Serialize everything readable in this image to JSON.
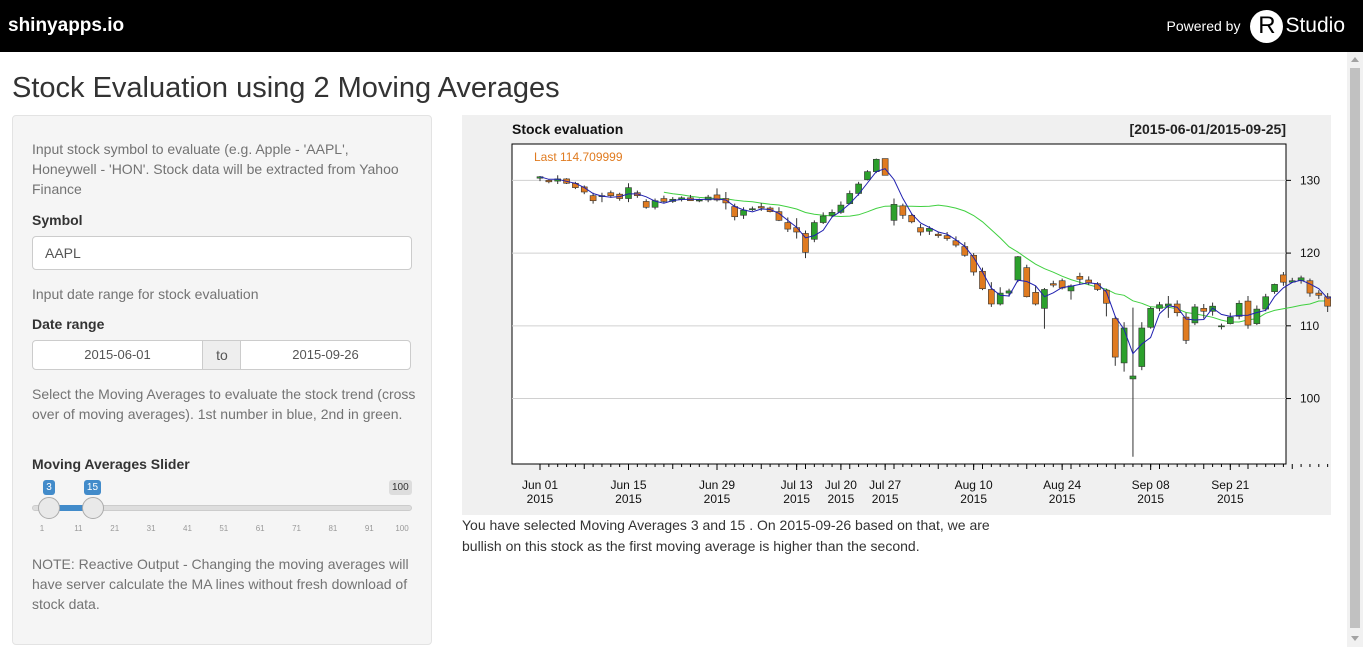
{
  "header": {
    "brand": "shinyapps.io",
    "powered_by": "Powered by",
    "logo_r": "R",
    "logo_studio": "Studio"
  },
  "page": {
    "title": "Stock Evaluation using 2 Moving Averages"
  },
  "sidebar": {
    "intro": "Input stock symbol to evaluate (e.g. Apple - 'AAPL', Honeywell - 'HON'. Stock data will be extracted from Yahoo Finance",
    "symbol_label": "Symbol",
    "symbol_value": "AAPL",
    "date_help": "Input date range for stock evaluation",
    "date_label": "Date range",
    "date_start": "2015-06-01",
    "date_sep": "to",
    "date_end": "2015-09-26",
    "ma_help": "Select the Moving Averages to evaluate the stock trend (cross over of moving averages). 1st number in blue, 2nd in green.",
    "slider_label": "Moving Averages Slider",
    "slider": {
      "min": 1,
      "max": 100,
      "low": 3,
      "high": 15,
      "low_label": "3",
      "high_label": "15",
      "max_label": "100",
      "ticks": [
        "1",
        "11",
        "21",
        "31",
        "41",
        "51",
        "61",
        "71",
        "81",
        "91",
        "100"
      ]
    },
    "note": "NOTE: Reactive Output - Changing the moving averages will have server calculate the MA lines without fresh download of stock data."
  },
  "result_text": "You have selected Moving Averages 3 and 15 . On 2015-09-26 based on that, we are bullish on this stock as the first moving average is higher than the second.",
  "chart_data": {
    "type": "candlestick",
    "title": "Stock evaluation",
    "range_label": "[2015-06-01/2015-09-25]",
    "last_label": "Last 114.709999",
    "ylim": [
      91,
      135
    ],
    "yticks": [
      100,
      110,
      120,
      130
    ],
    "xticks": [
      {
        "idx": 0,
        "l1": "Jun 01",
        "l2": "2015"
      },
      {
        "idx": 10,
        "l1": "Jun 15",
        "l2": "2015"
      },
      {
        "idx": 20,
        "l1": "Jun 29",
        "l2": "2015"
      },
      {
        "idx": 29,
        "l1": "Jul 13",
        "l2": "2015"
      },
      {
        "idx": 34,
        "l1": "Jul 20",
        "l2": "2015"
      },
      {
        "idx": 39,
        "l1": "Jul 27",
        "l2": "2015"
      },
      {
        "idx": 49,
        "l1": "Aug 10",
        "l2": "2015"
      },
      {
        "idx": 59,
        "l1": "Aug 24",
        "l2": "2015"
      },
      {
        "idx": 69,
        "l1": "Sep 08",
        "l2": "2015"
      },
      {
        "idx": 78,
        "l1": "Sep 21",
        "l2": "2015"
      }
    ],
    "colors": {
      "up": "#2ca02c",
      "down": "#e07b20",
      "ma1": "#2020b0",
      "ma2": "#40d040",
      "last": "#e07b20"
    },
    "ma_periods": [
      3,
      15
    ],
    "ohlc": [
      [
        130.3,
        130.6,
        129.9,
        130.5
      ],
      [
        130.0,
        130.1,
        129.6,
        129.8
      ],
      [
        129.9,
        130.7,
        129.5,
        130.2
      ],
      [
        130.2,
        130.3,
        129.5,
        129.6
      ],
      [
        129.6,
        129.8,
        128.8,
        129.0
      ],
      [
        129.1,
        129.3,
        128.1,
        128.4
      ],
      [
        127.9,
        128.3,
        126.8,
        127.2
      ],
      [
        127.8,
        128.3,
        127.0,
        127.9
      ],
      [
        128.3,
        128.6,
        127.6,
        127.9
      ],
      [
        128.1,
        128.3,
        127.2,
        127.5
      ],
      [
        127.5,
        129.6,
        127.0,
        129.0
      ],
      [
        128.3,
        128.6,
        127.6,
        127.9
      ],
      [
        127.1,
        127.4,
        126.1,
        126.3
      ],
      [
        126.3,
        127.5,
        126.0,
        127.2
      ],
      [
        127.5,
        127.9,
        126.9,
        127.1
      ],
      [
        127.1,
        127.7,
        126.9,
        127.4
      ],
      [
        127.4,
        127.8,
        127.1,
        127.6
      ],
      [
        127.6,
        128.0,
        127.2,
        127.2
      ],
      [
        127.2,
        127.5,
        127.0,
        127.3
      ],
      [
        127.3,
        128.0,
        127.0,
        127.7
      ],
      [
        128.0,
        128.9,
        127.1,
        127.3
      ],
      [
        127.5,
        128.4,
        126.0,
        126.9
      ],
      [
        126.4,
        126.8,
        124.5,
        125.0
      ],
      [
        125.2,
        126.3,
        124.7,
        125.9
      ],
      [
        126.0,
        126.4,
        125.8,
        126.1
      ],
      [
        126.4,
        126.9,
        125.8,
        126.2
      ],
      [
        126.2,
        126.4,
        125.6,
        125.7
      ],
      [
        125.7,
        126.3,
        124.4,
        124.5
      ],
      [
        124.2,
        124.9,
        122.9,
        123.3
      ],
      [
        123.5,
        124.8,
        122.0,
        122.9
      ],
      [
        122.7,
        123.1,
        119.3,
        120.1
      ],
      [
        121.9,
        124.5,
        121.5,
        124.2
      ],
      [
        124.2,
        125.6,
        124.0,
        125.1
      ],
      [
        125.2,
        126.0,
        124.9,
        125.6
      ],
      [
        125.6,
        127.1,
        125.4,
        126.6
      ],
      [
        126.8,
        128.6,
        126.7,
        128.2
      ],
      [
        128.2,
        129.8,
        127.9,
        129.5
      ],
      [
        130.1,
        131.4,
        130.0,
        131.2
      ],
      [
        131.2,
        133.0,
        131.0,
        132.9
      ],
      [
        133.0,
        133.0,
        130.7,
        130.7
      ],
      [
        124.5,
        127.5,
        123.8,
        126.7
      ],
      [
        126.5,
        126.8,
        124.7,
        125.2
      ],
      [
        125.2,
        125.4,
        124.1,
        124.3
      ],
      [
        123.5,
        124.0,
        122.4,
        122.9
      ],
      [
        123.0,
        123.7,
        122.5,
        123.4
      ],
      [
        122.6,
        122.9,
        122.1,
        122.4
      ],
      [
        122.4,
        122.9,
        121.7,
        122.0
      ],
      [
        121.7,
        122.3,
        120.8,
        121.1
      ],
      [
        120.9,
        121.5,
        119.5,
        119.7
      ],
      [
        119.7,
        120.0,
        116.9,
        117.4
      ],
      [
        117.5,
        118.0,
        114.9,
        115.1
      ],
      [
        115.0,
        116.0,
        112.6,
        113.0
      ],
      [
        113.0,
        115.3,
        112.8,
        114.5
      ],
      [
        114.5,
        115.1,
        114.0,
        114.8
      ],
      [
        116.3,
        119.6,
        116.0,
        119.5
      ],
      [
        118.0,
        118.4,
        113.9,
        114.0
      ],
      [
        114.6,
        115.5,
        112.8,
        113.0
      ],
      [
        112.4,
        115.2,
        109.6,
        115.0
      ],
      [
        115.8,
        116.2,
        115.3,
        115.6
      ],
      [
        116.2,
        116.5,
        115.0,
        115.2
      ],
      [
        114.8,
        115.7,
        113.6,
        115.5
      ],
      [
        116.8,
        117.3,
        115.7,
        116.4
      ],
      [
        116.3,
        116.8,
        115.6,
        115.9
      ],
      [
        115.8,
        116.0,
        114.8,
        115.0
      ],
      [
        114.9,
        115.1,
        111.3,
        113.1
      ],
      [
        111.0,
        111.3,
        104.5,
        105.7
      ],
      [
        104.9,
        110.5,
        103.7,
        109.7
      ],
      [
        102.7,
        112.5,
        92.0,
        103.1
      ],
      [
        104.4,
        110.5,
        103.9,
        109.7
      ],
      [
        109.8,
        112.6,
        109.6,
        112.4
      ],
      [
        112.4,
        113.3,
        112.0,
        112.9
      ],
      [
        112.7,
        114.1,
        111.1,
        113.0
      ],
      [
        113.0,
        113.5,
        111.3,
        111.8
      ],
      [
        111.2,
        111.8,
        107.5,
        108.0
      ],
      [
        110.4,
        113.0,
        110.1,
        112.6
      ],
      [
        112.4,
        113.0,
        111.0,
        112.0
      ],
      [
        112.0,
        113.2,
        111.4,
        112.7
      ],
      [
        110.0,
        110.3,
        109.5,
        110.0
      ],
      [
        110.3,
        111.8,
        110.2,
        111.2
      ],
      [
        111.3,
        113.5,
        110.9,
        113.1
      ],
      [
        113.4,
        114.1,
        109.6,
        110.1
      ],
      [
        110.3,
        112.8,
        110.1,
        112.3
      ],
      [
        112.3,
        114.4,
        112.0,
        114.0
      ],
      [
        114.7,
        115.8,
        114.4,
        115.7
      ],
      [
        117.0,
        117.4,
        115.5,
        116.0
      ],
      [
        116.0,
        116.6,
        115.9,
        116.2
      ],
      [
        116.2,
        116.9,
        115.8,
        116.6
      ],
      [
        116.2,
        116.5,
        114.0,
        114.5
      ],
      [
        114.5,
        114.9,
        113.7,
        114.2
      ],
      [
        114.0,
        114.5,
        111.9,
        112.7
      ],
      [
        113.7,
        115.4,
        113.3,
        115.2
      ],
      [
        115.1,
        115.4,
        113.2,
        113.3
      ],
      [
        113.1,
        114.4,
        112.9,
        114.2
      ],
      [
        113.8,
        114.2,
        112.5,
        113.6
      ],
      [
        113.8,
        115.5,
        113.6,
        115.0
      ],
      [
        114.8,
        116.3,
        114.4,
        114.7
      ]
    ]
  }
}
